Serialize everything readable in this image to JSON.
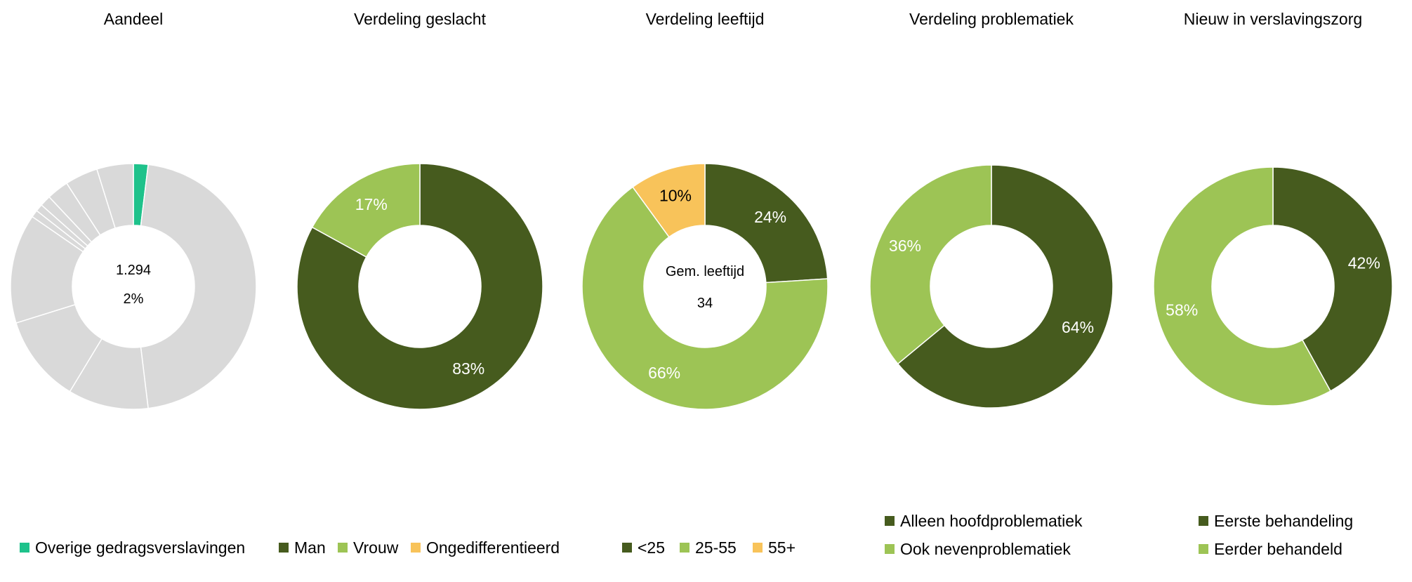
{
  "colors": {
    "dark_green": "#465b1e",
    "light_green": "#9dc455",
    "orange": "#f8c35a",
    "teal": "#1ec28b",
    "grey": "#d9d9d9"
  },
  "chart_data": [
    {
      "type": "pie",
      "title": "Aandeel",
      "center_lines": [
        "1.294",
        "2%"
      ],
      "slices": [
        {
          "name": "Overige gedragsverslavingen",
          "value": 2,
          "color": "#1ec28b",
          "label": ""
        },
        {
          "name": "",
          "value": 48,
          "color": "#d9d9d9",
          "label": ""
        },
        {
          "name": "",
          "value": 11,
          "color": "#d9d9d9",
          "label": ""
        },
        {
          "name": "",
          "value": 12,
          "color": "#d9d9d9",
          "label": ""
        },
        {
          "name": "",
          "value": 15,
          "color": "#d9d9d9",
          "label": ""
        },
        {
          "name": "",
          "value": 1,
          "color": "#d9d9d9",
          "label": ""
        },
        {
          "name": "",
          "value": 1,
          "color": "#d9d9d9",
          "label": ""
        },
        {
          "name": "",
          "value": 1.5,
          "color": "#d9d9d9",
          "label": ""
        },
        {
          "name": "",
          "value": 3,
          "color": "#d9d9d9",
          "label": ""
        },
        {
          "name": "",
          "value": 4.5,
          "color": "#d9d9d9",
          "label": ""
        },
        {
          "name": "",
          "value": 5,
          "color": "#d9d9d9",
          "label": ""
        }
      ],
      "legend": [
        {
          "name": "Overige gedragsverslavingen",
          "color": "#1ec28b"
        }
      ]
    },
    {
      "type": "pie",
      "title": "Verdeling geslacht",
      "center_lines": [],
      "slices": [
        {
          "name": "Man",
          "value": 83,
          "color": "#465b1e",
          "label": "83%"
        },
        {
          "name": "Vrouw",
          "value": 17,
          "color": "#9dc455",
          "label": "17%"
        }
      ],
      "legend": [
        {
          "name": "Man",
          "color": "#465b1e"
        },
        {
          "name": "Vrouw",
          "color": "#9dc455"
        },
        {
          "name": "Ongedifferentieerd",
          "color": "#f8c35a"
        }
      ]
    },
    {
      "type": "pie",
      "title": "Verdeling leeftijd",
      "center_lines": [
        "Gem. leeftijd",
        "34"
      ],
      "slices": [
        {
          "name": "<25",
          "value": 24,
          "color": "#465b1e",
          "label": "24%"
        },
        {
          "name": "25-55",
          "value": 66,
          "color": "#9dc455",
          "label": "66%"
        },
        {
          "name": "55+",
          "value": 10,
          "color": "#f8c35a",
          "label": "10%"
        }
      ],
      "legend": [
        {
          "name": "<25",
          "color": "#465b1e"
        },
        {
          "name": "25-55",
          "color": "#9dc455"
        },
        {
          "name": "55+",
          "color": "#f8c35a"
        }
      ]
    },
    {
      "type": "pie",
      "title": "Verdeling problematiek",
      "center_lines": [],
      "slices": [
        {
          "name": "Alleen hoofdproblematiek",
          "value": 64,
          "color": "#465b1e",
          "label": "64%"
        },
        {
          "name": "Ook nevenproblematiek",
          "value": 36,
          "color": "#9dc455",
          "label": "36%"
        }
      ],
      "legend": [
        {
          "name": "Alleen hoofdproblematiek",
          "color": "#465b1e"
        },
        {
          "name": "Ook nevenproblematiek",
          "color": "#9dc455"
        }
      ]
    },
    {
      "type": "pie",
      "title": "Nieuw in verslavingszorg",
      "center_lines": [],
      "slices": [
        {
          "name": "Eerste behandeling",
          "value": 42,
          "color": "#465b1e",
          "label": "42%"
        },
        {
          "name": "Eerder behandeld",
          "value": 58,
          "color": "#9dc455",
          "label": "58%"
        }
      ],
      "legend": [
        {
          "name": "Eerste behandeling",
          "color": "#465b1e"
        },
        {
          "name": "Eerder behandeld",
          "color": "#9dc455"
        }
      ]
    }
  ]
}
